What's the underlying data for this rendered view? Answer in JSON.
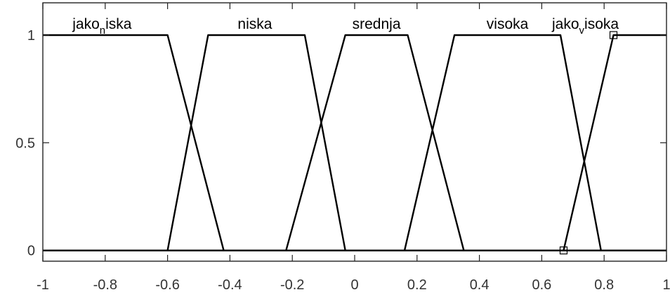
{
  "chart_data": {
    "type": "line",
    "xlim": [
      -1,
      1
    ],
    "ylim": [
      -0.05,
      1.15
    ],
    "x_ticks": [
      -1,
      -0.8,
      -0.6,
      -0.4,
      -0.2,
      0,
      0.2,
      0.4,
      0.6,
      0.8,
      1
    ],
    "x_tick_labels": [
      "-1",
      "-0.8",
      "-0.6",
      "-0.4",
      "-0.2",
      "0",
      "0.2",
      "0.4",
      "0.6",
      "0.8",
      "1"
    ],
    "y_ticks": [
      0,
      0.5,
      1
    ],
    "y_tick_labels": [
      "0",
      "0.5",
      "1"
    ],
    "grid": false,
    "line_color": "#000000",
    "series": [
      {
        "name": "jako_niska",
        "x": [
          -1,
          -0.6,
          -0.42,
          1
        ],
        "y": [
          1,
          1,
          0,
          0
        ]
      },
      {
        "name": "niska",
        "x": [
          -1,
          -0.6,
          -0.47,
          -0.16,
          -0.03,
          1
        ],
        "y": [
          0,
          0,
          1,
          1,
          0,
          0
        ]
      },
      {
        "name": "srednja",
        "x": [
          -1,
          -0.22,
          -0.03,
          0.17,
          0.35,
          1
        ],
        "y": [
          0,
          0,
          1,
          1,
          0,
          0
        ]
      },
      {
        "name": "visoka",
        "x": [
          -1,
          0.16,
          0.32,
          0.66,
          0.79,
          1
        ],
        "y": [
          0,
          0,
          1,
          1,
          0,
          0
        ]
      },
      {
        "name": "jako_visoka",
        "x": [
          -1,
          0.67,
          0.83,
          1
        ],
        "y": [
          0,
          0,
          1,
          1
        ]
      }
    ],
    "labels": [
      {
        "base": "jako",
        "sub": "n",
        "rest": "iska",
        "x": -0.81
      },
      {
        "base": "niska",
        "sub": "",
        "rest": "",
        "x": -0.32
      },
      {
        "base": "srednja",
        "sub": "",
        "rest": "",
        "x": 0.07
      },
      {
        "base": "visoka",
        "sub": "",
        "rest": "",
        "x": 0.49
      },
      {
        "base": "jako",
        "sub": "v",
        "rest": "isoka",
        "x": 0.74
      }
    ],
    "markers": [
      {
        "x": 0.67,
        "y": 0
      },
      {
        "x": 0.83,
        "y": 1
      }
    ]
  }
}
